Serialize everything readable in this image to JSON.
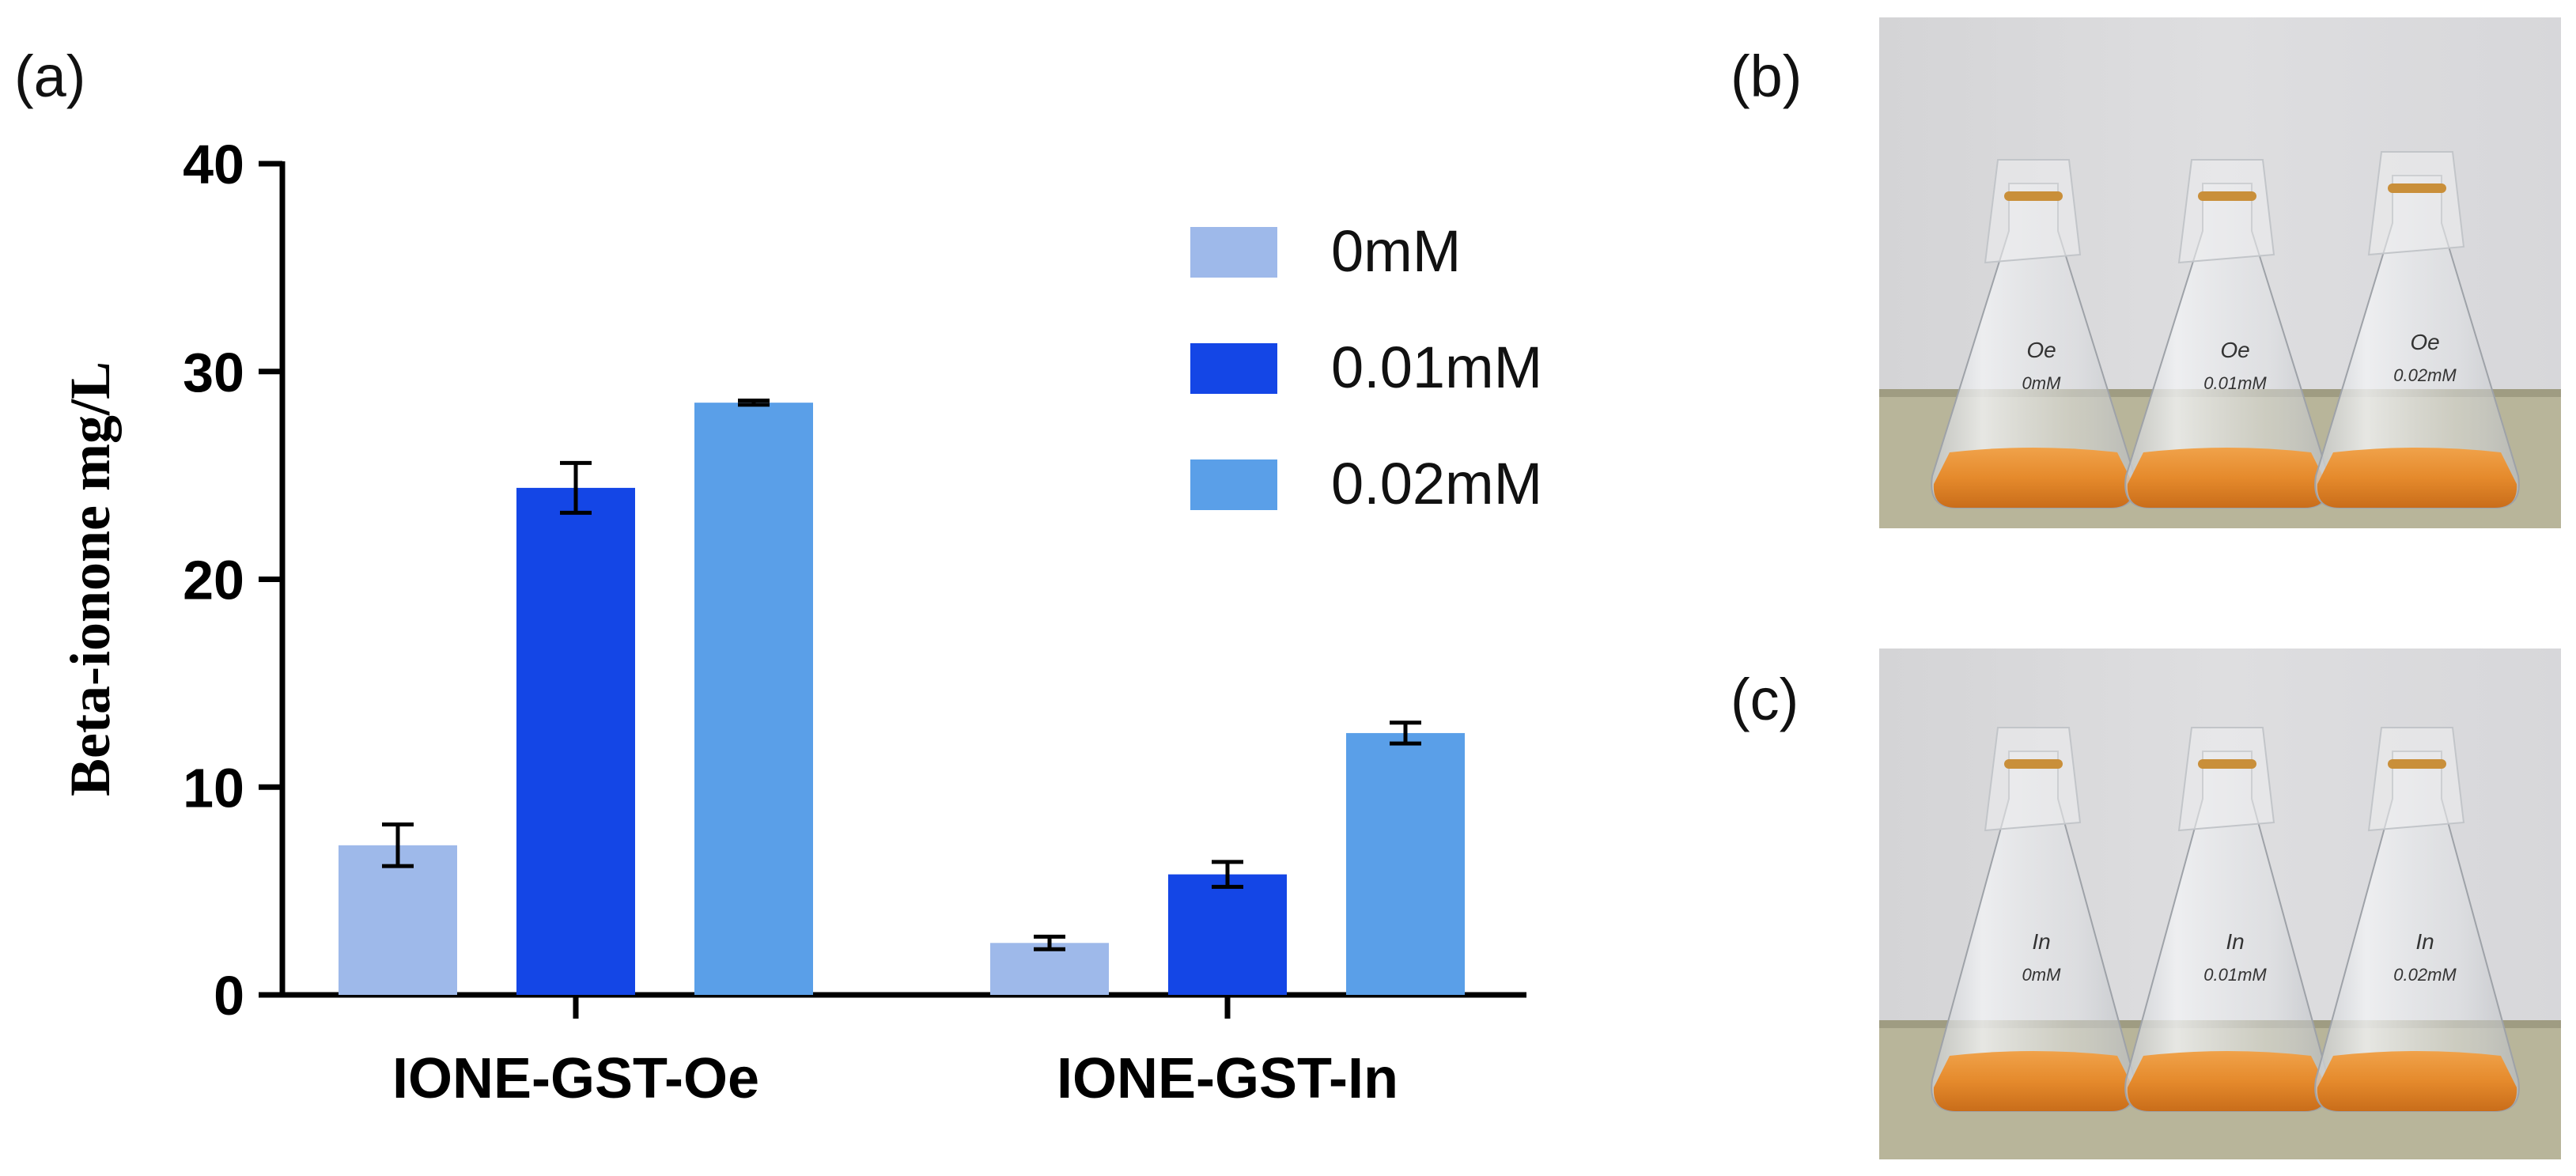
{
  "panels": {
    "a": "(a)",
    "b": "(b)",
    "c": "(c)"
  },
  "chart_data": {
    "type": "bar",
    "title": "",
    "xlabel": "",
    "ylabel": "Beta-ionone mg/L",
    "ylim": [
      0,
      40
    ],
    "yticks": [
      0,
      10,
      20,
      30,
      40
    ],
    "categories": [
      "IONE-GST-Oe",
      "IONE-GST-In"
    ],
    "legend_position": "top-right",
    "series": [
      {
        "name": "0mM",
        "color": "#9eb9ea",
        "values": [
          7.2,
          2.5
        ],
        "errors": [
          1.0,
          0.3
        ]
      },
      {
        "name": "0.01mM",
        "color": "#1446e6",
        "values": [
          24.4,
          5.8
        ],
        "errors": [
          1.2,
          0.6
        ]
      },
      {
        "name": "0.02mM",
        "color": "#5a9fe8",
        "values": [
          28.5,
          12.6
        ],
        "errors": [
          0.1,
          0.5
        ]
      }
    ]
  },
  "photos": {
    "b": {
      "flasks": [
        {
          "line1": "Oe",
          "line2": "0mM"
        },
        {
          "line1": "Oe",
          "line2": "0.01mM"
        },
        {
          "line1": "Oe",
          "line2": "0.02mM"
        }
      ]
    },
    "c": {
      "flasks": [
        {
          "line1": "In",
          "line2": "0mM"
        },
        {
          "line1": "In",
          "line2": "0.01mM"
        },
        {
          "line1": "In",
          "line2": "0.02mM"
        }
      ]
    }
  }
}
